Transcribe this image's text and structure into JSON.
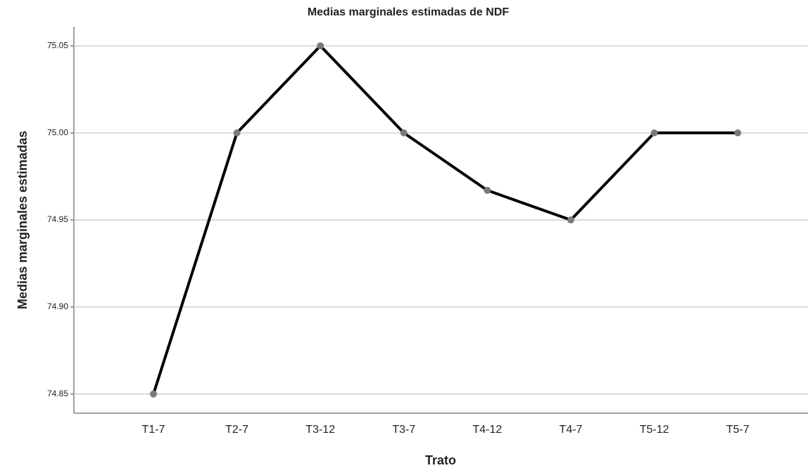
{
  "chart_data": {
    "type": "line",
    "title": "Medias marginales estimadas de NDF",
    "xlabel": "Trato",
    "ylabel": "Medias marginales estimadas",
    "categories": [
      "T1-7",
      "T2-7",
      "T3-12",
      "T3-7",
      "T4-12",
      "T4-7",
      "T5-12",
      "T5-7"
    ],
    "values": [
      74.85,
      75.0,
      75.05,
      75.0,
      74.967,
      74.95,
      75.0,
      75.0
    ],
    "color": "#000000",
    "marker_color": "#7a7a7a",
    "ylim": [
      74.839,
      75.061
    ],
    "yticks": [
      74.85,
      {
        "value": 74.9,
        "label": "74.90"
      },
      74.95,
      {
        "value": 75.0,
        "label": "75.00"
      },
      75.05
    ],
    "grid": true
  }
}
